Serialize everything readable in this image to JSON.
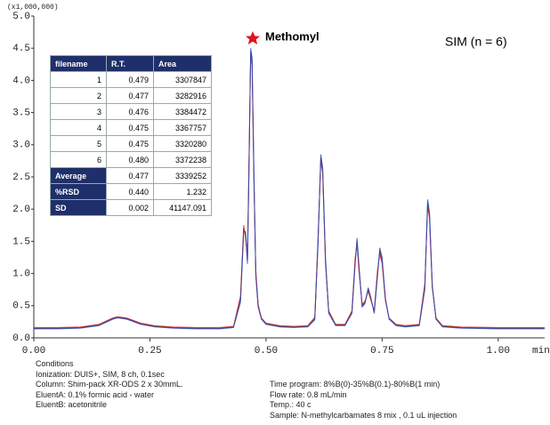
{
  "chart_data": {
    "type": "line",
    "y_multiplier": "(x1,000,000)",
    "x_label": "min",
    "annotations": [
      "Methomyl",
      "SIM (n = 6)"
    ],
    "x": [
      0,
      0.05,
      0.1,
      0.14,
      0.17,
      0.18,
      0.2,
      0.23,
      0.26,
      0.3,
      0.35,
      0.4,
      0.43,
      0.445,
      0.452,
      0.456,
      0.46,
      0.463,
      0.467,
      0.47,
      0.474,
      0.478,
      0.483,
      0.49,
      0.5,
      0.53,
      0.56,
      0.59,
      0.605,
      0.612,
      0.618,
      0.622,
      0.628,
      0.635,
      0.65,
      0.67,
      0.685,
      0.692,
      0.696,
      0.7,
      0.707,
      0.713,
      0.72,
      0.726,
      0.733,
      0.74,
      0.745,
      0.75,
      0.757,
      0.765,
      0.78,
      0.8,
      0.83,
      0.842,
      0.848,
      0.852,
      0.858,
      0.866,
      0.88,
      0.92,
      1.0,
      1.1
    ],
    "series": [
      {
        "color": "#222222",
        "values": [
          0.15,
          0.15,
          0.16,
          0.2,
          0.3,
          0.32,
          0.3,
          0.22,
          0.18,
          0.16,
          0.15,
          0.15,
          0.17,
          0.6,
          1.7,
          1.6,
          1.2,
          2.5,
          4.45,
          4.3,
          2.5,
          1.0,
          0.5,
          0.3,
          0.22,
          0.18,
          0.17,
          0.18,
          0.3,
          1.5,
          2.8,
          2.6,
          1.2,
          0.4,
          0.2,
          0.2,
          0.4,
          1.2,
          1.5,
          1.1,
          0.5,
          0.55,
          0.75,
          0.6,
          0.4,
          1.0,
          1.35,
          1.2,
          0.6,
          0.3,
          0.2,
          0.18,
          0.2,
          0.8,
          2.1,
          1.9,
          0.8,
          0.3,
          0.18,
          0.16,
          0.15,
          0.15
        ]
      },
      {
        "color": "#d62728",
        "values": [
          0.16,
          0.16,
          0.17,
          0.21,
          0.31,
          0.33,
          0.31,
          0.23,
          0.19,
          0.17,
          0.16,
          0.16,
          0.18,
          0.65,
          1.75,
          1.55,
          1.25,
          2.6,
          4.4,
          4.2,
          2.4,
          1.05,
          0.52,
          0.31,
          0.23,
          0.19,
          0.18,
          0.19,
          0.32,
          1.55,
          2.75,
          2.55,
          1.15,
          0.42,
          0.21,
          0.21,
          0.42,
          1.25,
          1.45,
          1.05,
          0.52,
          0.57,
          0.72,
          0.58,
          0.42,
          1.05,
          1.3,
          1.15,
          0.58,
          0.31,
          0.21,
          0.19,
          0.21,
          0.85,
          2.05,
          1.85,
          0.78,
          0.31,
          0.19,
          0.17,
          0.16,
          0.16
        ]
      },
      {
        "color": "#2a4bbf",
        "values": [
          0.14,
          0.14,
          0.15,
          0.19,
          0.29,
          0.31,
          0.29,
          0.21,
          0.17,
          0.15,
          0.14,
          0.14,
          0.16,
          0.55,
          1.65,
          1.65,
          1.15,
          2.45,
          4.5,
          4.35,
          2.55,
          0.95,
          0.48,
          0.29,
          0.21,
          0.17,
          0.16,
          0.17,
          0.28,
          1.45,
          2.85,
          2.65,
          1.25,
          0.38,
          0.19,
          0.19,
          0.38,
          1.15,
          1.55,
          1.15,
          0.48,
          0.53,
          0.78,
          0.62,
          0.38,
          0.95,
          1.4,
          1.25,
          0.62,
          0.29,
          0.19,
          0.17,
          0.19,
          0.75,
          2.15,
          1.95,
          0.82,
          0.29,
          0.17,
          0.15,
          0.14,
          0.14
        ]
      }
    ],
    "xlim": [
      0,
      1.1
    ],
    "xticks": [
      {
        "value": 0,
        "label": "0.00"
      },
      0.25,
      {
        "value": 0.5,
        "label": "0.50"
      },
      0.75,
      {
        "value": 1,
        "label": "1.00"
      }
    ],
    "ylim": [
      0,
      5
    ],
    "yticks": [
      {
        "value": 0,
        "label": "0.0"
      },
      0.5,
      {
        "value": 1,
        "label": "1.0"
      },
      1.5,
      {
        "value": 2,
        "label": "2.0"
      },
      2.5,
      {
        "value": 3,
        "label": "3.0"
      },
      3.5,
      {
        "value": 4,
        "label": "4.0"
      },
      4.5,
      {
        "value": 5,
        "label": "5.0"
      }
    ]
  },
  "table": {
    "columns": [
      "filename",
      "R.T.",
      "Area"
    ],
    "rows": [
      [
        "1",
        "0.479",
        "3307847"
      ],
      [
        "2",
        "0.477",
        "3282916"
      ],
      [
        "3",
        "0.476",
        "3384472"
      ],
      [
        "4",
        "0.475",
        "3367757"
      ],
      [
        "5",
        "0.475",
        "3320280"
      ],
      [
        "6",
        "0.480",
        "3372238"
      ],
      [
        "Average",
        "0.477",
        "3339252"
      ],
      [
        "%RSD",
        "0.440",
        "1.232"
      ],
      [
        "SD",
        "0.002",
        "41147.091"
      ]
    ]
  },
  "conditions": {
    "left": [
      "Conditions",
      "Ionization: DUIS+, SIM, 8 ch, 0.1sec",
      "Column: Shim-pack XR-ODS 2 x 30mmL.",
      "EluentA: 0.1% formic acid - water",
      "EluentB: acetonitrile"
    ],
    "right": [
      "Time program: 8%B(0)-35%B(0.1)-80%B(1 min)",
      "Flow rate: 0.8 mL/min",
      "Temp.: 40 c",
      "Sample: N-methylcarbamates 8 mix , 0.1 uL injection"
    ]
  }
}
